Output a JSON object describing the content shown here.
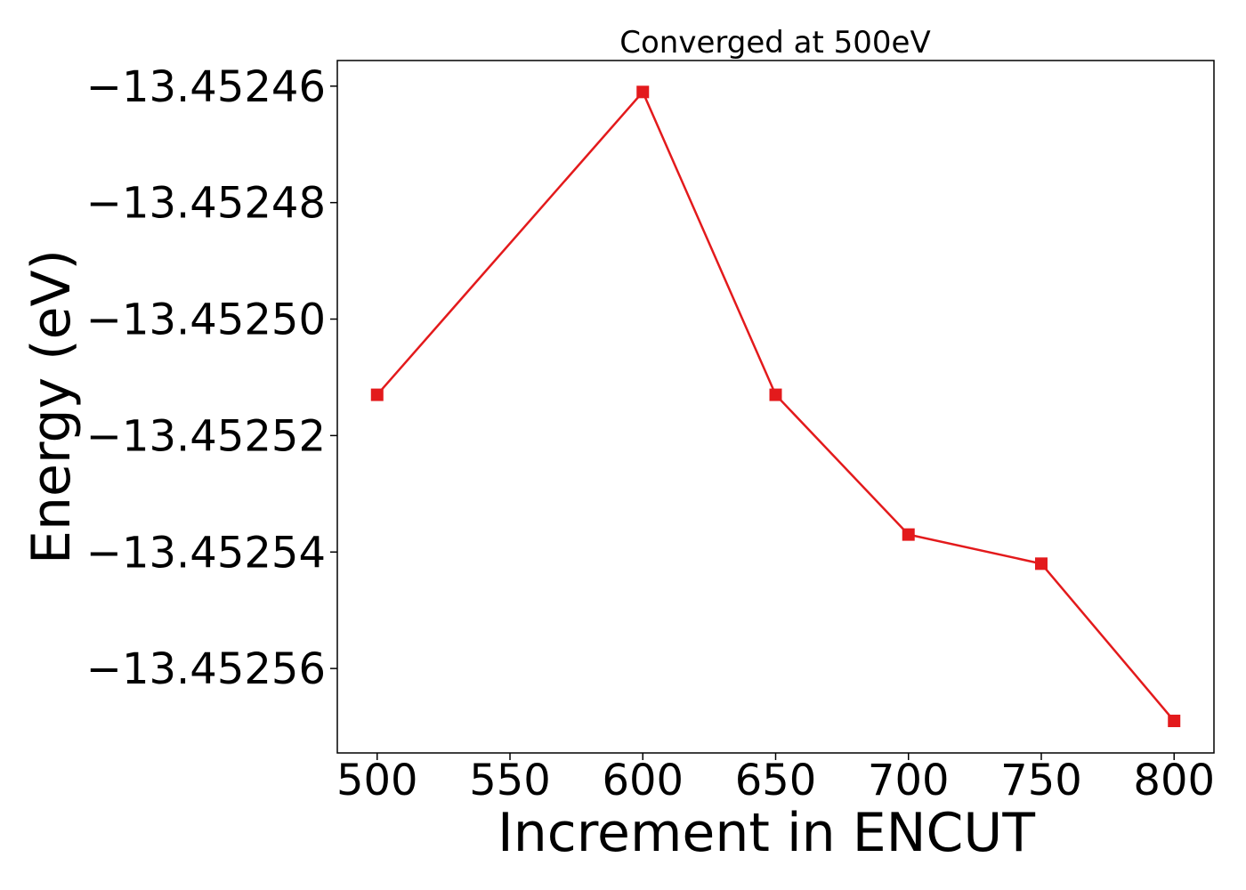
{
  "chart_data": {
    "type": "line",
    "title": "Converged at 500eV",
    "xlabel": "Increment in ENCUT",
    "ylabel": "Energy (eV)",
    "x": [
      500,
      600,
      650,
      700,
      750,
      800
    ],
    "series": [
      {
        "values": [
          -13.452513,
          -13.452461,
          -13.452513,
          -13.452537,
          -13.452542,
          -13.452569
        ],
        "color": "#e31a1c",
        "marker": "square"
      }
    ],
    "xticks": [
      500,
      550,
      600,
      650,
      700,
      750,
      800
    ],
    "xtick_labels": [
      "500",
      "550",
      "600",
      "650",
      "700",
      "750",
      "800"
    ],
    "yticks": [
      -13.45246,
      -13.45248,
      -13.4525,
      -13.45252,
      -13.45254,
      -13.45256
    ],
    "ytick_labels": [
      "−13.45246",
      "−13.45248",
      "−13.45250",
      "−13.45252",
      "−13.45254",
      "−13.45256"
    ],
    "xlim": [
      485,
      815
    ],
    "ylim": [
      -13.4525745,
      -13.4524556
    ],
    "grid": false,
    "legend": false
  }
}
